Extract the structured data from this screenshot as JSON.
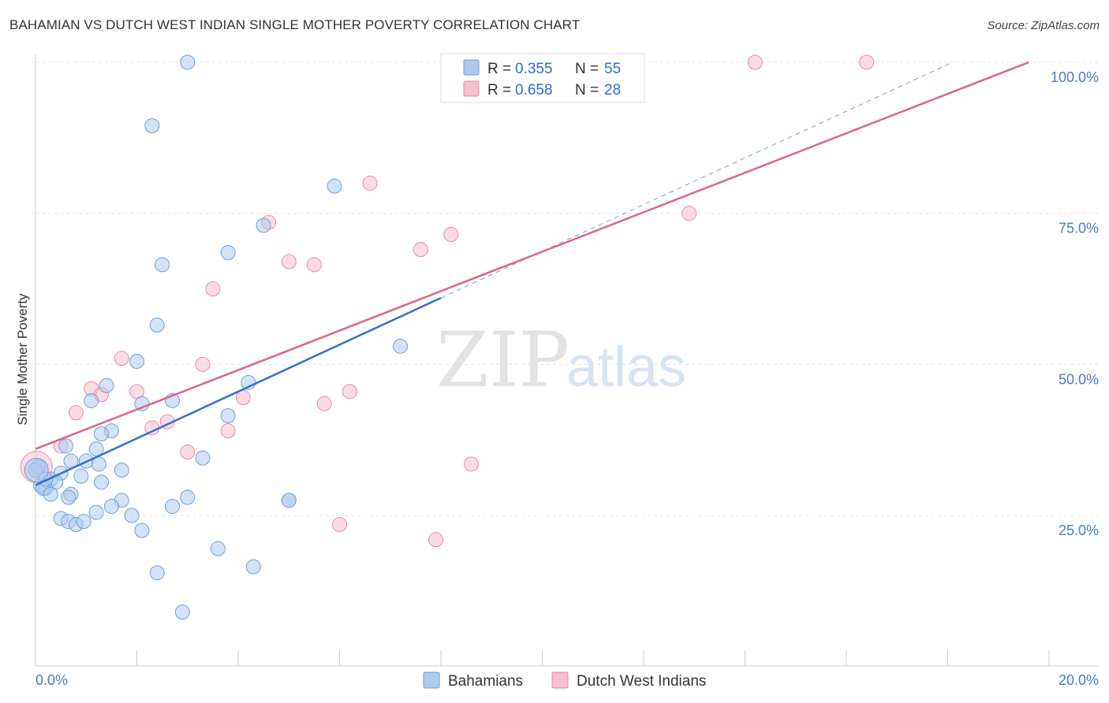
{
  "title": "BAHAMIAN VS DUTCH WEST INDIAN SINGLE MOTHER POVERTY CORRELATION CHART",
  "source": "Source: ZipAtlas.com",
  "watermark": {
    "zip": "ZIP",
    "atlas": "atlas"
  },
  "colors": {
    "blue_fill": "#aecbee",
    "blue_stroke": "#6f9fd8",
    "blue_line": "#2f72d0",
    "pink_fill": "#f7bfcf",
    "pink_stroke": "#e98aa6",
    "pink_line": "#e0628a",
    "grid": "#dddddd",
    "axis_label": "#4a7cc7"
  },
  "legend": {
    "series": [
      {
        "r_label": "R =",
        "r_value": "0.355",
        "n_label": "N =",
        "n_value": "55"
      },
      {
        "r_label": "R =",
        "r_value": "0.658",
        "n_label": "N =",
        "n_value": "28"
      }
    ]
  },
  "chart_data": {
    "type": "scatter",
    "title": "BAHAMIAN VS DUTCH WEST INDIAN SINGLE MOTHER POVERTY CORRELATION CHART",
    "xlabel": "",
    "ylabel": "Single Mother Poverty",
    "xlim": [
      0,
      20
    ],
    "ylim": [
      0,
      102
    ],
    "x_tick_labels": [
      "0.0%",
      "20.0%"
    ],
    "y_ticks": [
      25,
      50,
      75,
      100
    ],
    "y_tick_labels": [
      "25.0%",
      "50.0%",
      "75.0%",
      "100.0%"
    ],
    "grid": true,
    "series": [
      {
        "name": "Bahamians",
        "color": "#aecbee",
        "r": 0.355,
        "n": 55,
        "trend": {
          "x": [
            0,
            8.0
          ],
          "y": [
            30.0,
            61.0
          ],
          "extended_dashed_to": [
            18.1,
            100
          ]
        },
        "points": [
          [
            3.0,
            100
          ],
          [
            2.3,
            89.5
          ],
          [
            5.9,
            79.5
          ],
          [
            4.5,
            73.0
          ],
          [
            3.8,
            68.5
          ],
          [
            2.5,
            66.5
          ],
          [
            2.4,
            56.5
          ],
          [
            7.2,
            53.0
          ],
          [
            2.0,
            50.5
          ],
          [
            4.2,
            47.0
          ],
          [
            1.4,
            46.5
          ],
          [
            1.1,
            44.0
          ],
          [
            2.1,
            43.5
          ],
          [
            2.7,
            44.0
          ],
          [
            3.8,
            41.5
          ],
          [
            1.5,
            39.0
          ],
          [
            1.3,
            38.5
          ],
          [
            0.6,
            36.5
          ],
          [
            1.2,
            36.0
          ],
          [
            3.3,
            34.5
          ],
          [
            0.7,
            34.0
          ],
          [
            1.0,
            34.0
          ],
          [
            1.25,
            33.5
          ],
          [
            1.7,
            32.5
          ],
          [
            0.5,
            32.0
          ],
          [
            0.9,
            31.5
          ],
          [
            0.3,
            31.0
          ],
          [
            0.4,
            30.5
          ],
          [
            1.3,
            30.5
          ],
          [
            0.1,
            30.0
          ],
          [
            0.2,
            29.5
          ],
          [
            0.15,
            29.5
          ],
          [
            0.3,
            28.5
          ],
          [
            0.7,
            28.5
          ],
          [
            0.65,
            28.0
          ],
          [
            3.0,
            28.0
          ],
          [
            1.7,
            27.5
          ],
          [
            5.0,
            27.5
          ],
          [
            5.0,
            27.5
          ],
          [
            1.5,
            26.5
          ],
          [
            2.7,
            26.5
          ],
          [
            1.2,
            25.5
          ],
          [
            1.9,
            25.0
          ],
          [
            0.5,
            24.5
          ],
          [
            0.65,
            24.0
          ],
          [
            0.8,
            23.5
          ],
          [
            0.95,
            24.0
          ],
          [
            2.1,
            22.5
          ],
          [
            3.6,
            19.5
          ],
          [
            4.3,
            16.5
          ],
          [
            2.4,
            15.5
          ],
          [
            2.9,
            9.0
          ],
          [
            0.05,
            33.0
          ],
          [
            0.0,
            32.5
          ],
          [
            0.2,
            31.0
          ]
        ]
      },
      {
        "name": "Dutch West Indians",
        "color": "#f7bfcf",
        "r": 0.658,
        "n": 28,
        "trend": {
          "x": [
            0,
            19.6
          ],
          "y": [
            36.0,
            100
          ]
        },
        "points": [
          [
            14.2,
            100
          ],
          [
            16.4,
            100
          ],
          [
            6.6,
            80.0
          ],
          [
            4.6,
            73.5
          ],
          [
            12.9,
            75.0
          ],
          [
            8.2,
            71.5
          ],
          [
            7.6,
            69.0
          ],
          [
            5.0,
            67.0
          ],
          [
            5.5,
            66.5
          ],
          [
            3.5,
            62.5
          ],
          [
            1.7,
            51.0
          ],
          [
            3.3,
            50.0
          ],
          [
            1.1,
            46.0
          ],
          [
            2.0,
            45.5
          ],
          [
            6.2,
            45.5
          ],
          [
            1.3,
            45.0
          ],
          [
            4.1,
            44.5
          ],
          [
            5.7,
            43.5
          ],
          [
            0.8,
            42.0
          ],
          [
            2.6,
            40.5
          ],
          [
            2.3,
            39.5
          ],
          [
            3.8,
            39.0
          ],
          [
            0.5,
            36.5
          ],
          [
            3.0,
            35.5
          ],
          [
            8.6,
            33.5
          ],
          [
            0.1,
            33.0
          ],
          [
            6.0,
            23.5
          ],
          [
            7.9,
            21.0
          ]
        ]
      }
    ]
  }
}
